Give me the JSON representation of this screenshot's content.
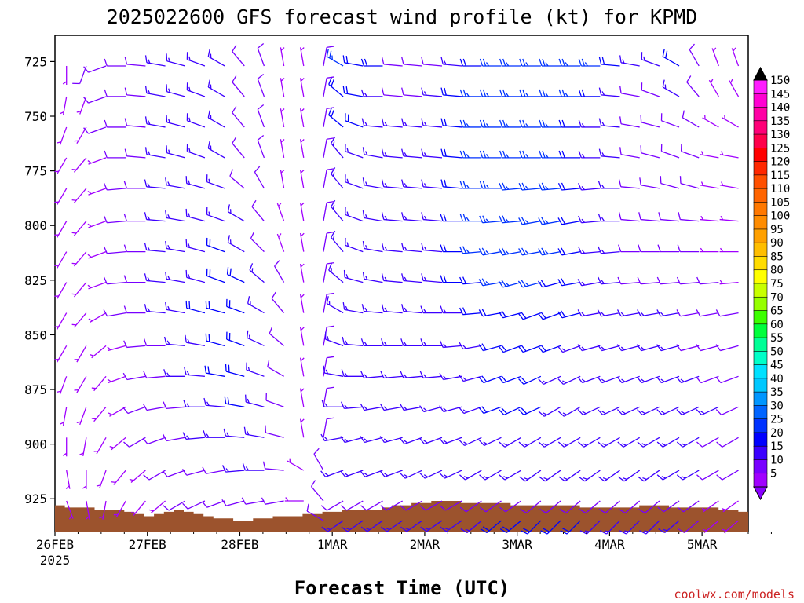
{
  "chart_data": {
    "type": "wind-barb time-height",
    "title": "2025022600 GFS forecast wind profile (kt) for KPMD",
    "xlabel": "Forecast Time (UTC)",
    "ylabel": "",
    "credit": "coolwx.com/models",
    "units": "kt",
    "x_ticks": [
      "26FEB",
      "27FEB",
      "28FEB",
      "1MAR",
      "2MAR",
      "3MAR",
      "4MAR",
      "5MAR"
    ],
    "x_tick_year": "2025",
    "y_ticks": [
      725,
      750,
      775,
      800,
      825,
      850,
      875,
      900,
      925
    ],
    "y_range": [
      713,
      940
    ],
    "levels": [
      727,
      741,
      755,
      769,
      783,
      798,
      812,
      826,
      840,
      855,
      869,
      883,
      897,
      912,
      926,
      935
    ],
    "colorbar": {
      "labels": [
        "150",
        "145",
        "140",
        "135",
        "130",
        "125",
        "120",
        "115",
        "110",
        "105",
        "100",
        "95",
        "90",
        "85",
        "80",
        "75",
        "70",
        "65",
        "60",
        "55",
        "50",
        "45",
        "40",
        "35",
        "30",
        "25",
        "20",
        "15",
        "10",
        "5"
      ],
      "colors": [
        "#ff1cff",
        "#ff00d2",
        "#ff00a5",
        "#ff0078",
        "#ff004b",
        "#ff0000",
        "#ff2800",
        "#ff5000",
        "#ff6400",
        "#ff7800",
        "#ff8c00",
        "#ffa000",
        "#ffbe00",
        "#ffdc00",
        "#ffff00",
        "#c8ff00",
        "#96ff00",
        "#3cff00",
        "#00ff3c",
        "#00ff96",
        "#00ffc8",
        "#00e1ff",
        "#00c8ff",
        "#0096ff",
        "#0064ff",
        "#0032ff",
        "#0000ff",
        "#3c00ff",
        "#7800ff",
        "#a000ff"
      ]
    },
    "x_range_days": [
      0,
      7.5
    ],
    "wind_speed_kt": [
      [
        5,
        10,
        10,
        10,
        10,
        15,
        15,
        15,
        15,
        10,
        10,
        5,
        5,
        10,
        25,
        20,
        20,
        10,
        10,
        10,
        15,
        20,
        25,
        25,
        25,
        25,
        25,
        25,
        20,
        15,
        15,
        20,
        10,
        5,
        5
      ],
      [
        5,
        5,
        10,
        10,
        10,
        15,
        15,
        15,
        15,
        10,
        10,
        5,
        5,
        10,
        20,
        20,
        15,
        10,
        10,
        15,
        20,
        25,
        25,
        25,
        25,
        25,
        25,
        20,
        15,
        10,
        10,
        15,
        10,
        5,
        5
      ],
      [
        5,
        5,
        10,
        10,
        10,
        15,
        15,
        15,
        15,
        10,
        10,
        5,
        5,
        10,
        20,
        20,
        15,
        15,
        15,
        15,
        20,
        25,
        25,
        25,
        25,
        25,
        20,
        15,
        15,
        10,
        10,
        10,
        10,
        5,
        5
      ],
      [
        5,
        5,
        5,
        10,
        10,
        15,
        15,
        15,
        15,
        10,
        10,
        5,
        5,
        10,
        15,
        15,
        15,
        15,
        15,
        15,
        20,
        25,
        25,
        25,
        25,
        25,
        20,
        15,
        15,
        10,
        10,
        10,
        10,
        5,
        5
      ],
      [
        5,
        5,
        5,
        10,
        10,
        15,
        15,
        15,
        15,
        10,
        10,
        5,
        5,
        10,
        15,
        15,
        15,
        15,
        15,
        15,
        20,
        25,
        25,
        25,
        25,
        25,
        20,
        15,
        15,
        10,
        10,
        10,
        10,
        5,
        5
      ],
      [
        5,
        5,
        5,
        10,
        10,
        15,
        15,
        15,
        15,
        15,
        10,
        5,
        5,
        10,
        15,
        15,
        15,
        15,
        15,
        15,
        20,
        25,
        25,
        25,
        25,
        25,
        20,
        15,
        15,
        10,
        10,
        10,
        10,
        5,
        5
      ],
      [
        5,
        5,
        5,
        10,
        10,
        15,
        15,
        15,
        20,
        15,
        10,
        5,
        5,
        10,
        15,
        15,
        15,
        15,
        15,
        15,
        20,
        25,
        25,
        25,
        25,
        25,
        20,
        15,
        15,
        10,
        10,
        10,
        10,
        5,
        5
      ],
      [
        5,
        5,
        5,
        10,
        10,
        15,
        15,
        15,
        20,
        20,
        15,
        10,
        5,
        10,
        15,
        15,
        15,
        15,
        15,
        15,
        20,
        20,
        25,
        25,
        25,
        20,
        20,
        15,
        15,
        10,
        10,
        10,
        10,
        10,
        5
      ],
      [
        5,
        5,
        5,
        10,
        10,
        15,
        15,
        20,
        20,
        20,
        15,
        10,
        5,
        10,
        15,
        15,
        15,
        15,
        15,
        15,
        15,
        20,
        20,
        20,
        20,
        20,
        20,
        15,
        15,
        15,
        15,
        15,
        10,
        10,
        10
      ],
      [
        5,
        5,
        5,
        5,
        10,
        10,
        15,
        15,
        20,
        20,
        15,
        10,
        5,
        10,
        15,
        15,
        15,
        15,
        15,
        15,
        15,
        15,
        20,
        20,
        20,
        20,
        15,
        15,
        15,
        15,
        15,
        15,
        10,
        10,
        10
      ],
      [
        5,
        5,
        5,
        5,
        10,
        10,
        15,
        15,
        20,
        20,
        15,
        10,
        5,
        10,
        15,
        15,
        15,
        15,
        15,
        15,
        15,
        15,
        20,
        20,
        20,
        15,
        15,
        15,
        15,
        15,
        15,
        15,
        15,
        10,
        10
      ],
      [
        5,
        5,
        5,
        5,
        10,
        10,
        10,
        15,
        15,
        20,
        15,
        10,
        5,
        10,
        15,
        15,
        15,
        15,
        15,
        15,
        15,
        15,
        20,
        20,
        20,
        15,
        15,
        15,
        15,
        15,
        15,
        15,
        15,
        15,
        10
      ],
      [
        5,
        5,
        5,
        5,
        10,
        10,
        10,
        15,
        15,
        15,
        15,
        10,
        5,
        10,
        15,
        15,
        15,
        15,
        15,
        15,
        15,
        15,
        15,
        15,
        15,
        15,
        15,
        15,
        15,
        15,
        15,
        15,
        15,
        10,
        10
      ],
      [
        5,
        5,
        5,
        5,
        5,
        10,
        10,
        10,
        10,
        15,
        15,
        10,
        5,
        10,
        15,
        15,
        15,
        15,
        15,
        15,
        15,
        15,
        15,
        15,
        15,
        15,
        15,
        15,
        15,
        15,
        15,
        15,
        15,
        10,
        10
      ],
      [
        5,
        5,
        5,
        5,
        5,
        5,
        10,
        10,
        10,
        10,
        10,
        10,
        5,
        10,
        10,
        10,
        10,
        10,
        10,
        10,
        10,
        10,
        10,
        10,
        10,
        10,
        10,
        10,
        10,
        10,
        10,
        10,
        10,
        5,
        5
      ],
      [
        0,
        0,
        0,
        0,
        0,
        0,
        0,
        0,
        0,
        0,
        0,
        0,
        0,
        10,
        15,
        15,
        15,
        15,
        15,
        15,
        15,
        15,
        20,
        20,
        20,
        20,
        20,
        15,
        15,
        15,
        15,
        15,
        10,
        5,
        5
      ]
    ],
    "wind_dir_deg": [
      [
        180,
        200,
        250,
        270,
        275,
        280,
        285,
        290,
        300,
        320,
        340,
        350,
        350,
        10,
        300,
        280,
        270,
        275,
        275,
        275,
        275,
        270,
        270,
        270,
        270,
        270,
        270,
        270,
        275,
        280,
        290,
        300,
        330,
        340,
        340
      ],
      [
        190,
        200,
        250,
        270,
        275,
        280,
        285,
        290,
        300,
        320,
        340,
        350,
        350,
        10,
        310,
        280,
        270,
        275,
        275,
        275,
        275,
        270,
        270,
        270,
        270,
        270,
        270,
        270,
        275,
        280,
        290,
        300,
        320,
        330,
        330
      ],
      [
        200,
        210,
        250,
        270,
        275,
        280,
        285,
        290,
        300,
        320,
        340,
        350,
        350,
        10,
        310,
        290,
        275,
        275,
        275,
        275,
        275,
        270,
        270,
        270,
        270,
        270,
        270,
        270,
        275,
        280,
        285,
        290,
        300,
        300,
        300
      ],
      [
        210,
        220,
        250,
        270,
        275,
        280,
        285,
        290,
        300,
        320,
        340,
        350,
        350,
        10,
        320,
        290,
        280,
        275,
        275,
        275,
        275,
        270,
        270,
        270,
        270,
        270,
        270,
        270,
        275,
        280,
        285,
        290,
        290,
        280,
        280
      ],
      [
        210,
        220,
        250,
        265,
        270,
        275,
        280,
        285,
        290,
        310,
        330,
        350,
        350,
        10,
        320,
        290,
        280,
        275,
        275,
        275,
        275,
        270,
        270,
        265,
        265,
        265,
        265,
        265,
        270,
        275,
        280,
        285,
        285,
        280,
        280
      ],
      [
        210,
        220,
        250,
        265,
        270,
        275,
        280,
        285,
        290,
        300,
        320,
        340,
        350,
        10,
        320,
        290,
        280,
        275,
        275,
        275,
        270,
        270,
        265,
        265,
        260,
        260,
        260,
        265,
        270,
        275,
        275,
        275,
        275,
        275,
        275
      ],
      [
        210,
        220,
        250,
        265,
        270,
        275,
        280,
        285,
        290,
        300,
        315,
        340,
        350,
        10,
        320,
        290,
        280,
        275,
        275,
        275,
        270,
        265,
        260,
        260,
        260,
        260,
        260,
        265,
        265,
        270,
        270,
        270,
        270,
        270,
        270
      ],
      [
        210,
        220,
        250,
        265,
        270,
        275,
        280,
        285,
        290,
        295,
        310,
        330,
        350,
        10,
        310,
        285,
        280,
        275,
        275,
        275,
        270,
        265,
        260,
        255,
        255,
        255,
        260,
        260,
        265,
        265,
        265,
        265,
        265,
        265,
        265
      ],
      [
        210,
        220,
        240,
        260,
        270,
        275,
        280,
        285,
        285,
        290,
        300,
        320,
        350,
        10,
        300,
        280,
        275,
        275,
        275,
        270,
        270,
        265,
        260,
        255,
        250,
        250,
        255,
        260,
        260,
        260,
        260,
        260,
        260,
        260,
        260
      ],
      [
        210,
        210,
        230,
        255,
        265,
        270,
        275,
        280,
        285,
        290,
        295,
        310,
        350,
        10,
        290,
        275,
        270,
        270,
        270,
        270,
        265,
        260,
        255,
        250,
        250,
        250,
        250,
        255,
        255,
        255,
        255,
        255,
        255,
        255,
        255
      ],
      [
        200,
        210,
        220,
        250,
        260,
        265,
        270,
        275,
        280,
        285,
        290,
        300,
        350,
        10,
        280,
        270,
        265,
        265,
        265,
        265,
        260,
        255,
        250,
        250,
        245,
        245,
        245,
        250,
        250,
        250,
        250,
        250,
        250,
        250,
        250
      ],
      [
        190,
        200,
        220,
        240,
        250,
        260,
        265,
        270,
        275,
        280,
        285,
        290,
        350,
        10,
        270,
        265,
        260,
        260,
        260,
        255,
        255,
        250,
        250,
        245,
        245,
        240,
        240,
        245,
        245,
        245,
        245,
        245,
        245,
        245,
        245
      ],
      [
        180,
        190,
        210,
        230,
        240,
        250,
        260,
        265,
        270,
        275,
        280,
        285,
        350,
        10,
        260,
        255,
        255,
        255,
        250,
        250,
        250,
        245,
        245,
        240,
        240,
        240,
        240,
        240,
        240,
        240,
        240,
        240,
        240,
        240,
        240
      ],
      [
        170,
        180,
        200,
        220,
        230,
        240,
        250,
        255,
        260,
        265,
        270,
        275,
        300,
        330,
        250,
        250,
        250,
        250,
        245,
        245,
        245,
        240,
        240,
        240,
        235,
        235,
        235,
        235,
        235,
        235,
        235,
        240,
        240,
        240,
        240
      ],
      [
        160,
        170,
        190,
        210,
        220,
        230,
        240,
        245,
        250,
        255,
        260,
        260,
        270,
        320,
        240,
        240,
        240,
        240,
        240,
        240,
        240,
        235,
        235,
        235,
        230,
        230,
        230,
        230,
        230,
        230,
        230,
        235,
        235,
        235,
        235
      ],
      [
        0,
        0,
        0,
        0,
        0,
        0,
        0,
        0,
        0,
        0,
        0,
        0,
        0,
        300,
        235,
        235,
        235,
        235,
        235,
        235,
        235,
        230,
        230,
        230,
        225,
        225,
        225,
        225,
        225,
        225,
        225,
        230,
        230,
        230,
        230
      ]
    ],
    "surface_pressure_hPa": [
      928,
      929,
      929,
      929,
      930,
      930,
      930,
      931,
      932,
      933,
      932,
      931,
      930,
      931,
      932,
      933,
      934,
      934,
      935,
      935,
      934,
      934,
      933,
      933,
      933,
      932,
      932,
      931,
      931,
      930,
      930,
      930,
      930,
      929,
      928,
      928,
      927,
      927,
      926,
      926,
      926,
      927,
      927,
      927,
      927,
      927,
      928,
      928,
      928,
      928,
      928,
      928,
      928,
      929,
      929,
      929,
      929,
      929,
      929,
      928,
      928,
      928,
      929,
      929,
      929,
      929,
      929,
      930,
      930,
      931
    ]
  }
}
